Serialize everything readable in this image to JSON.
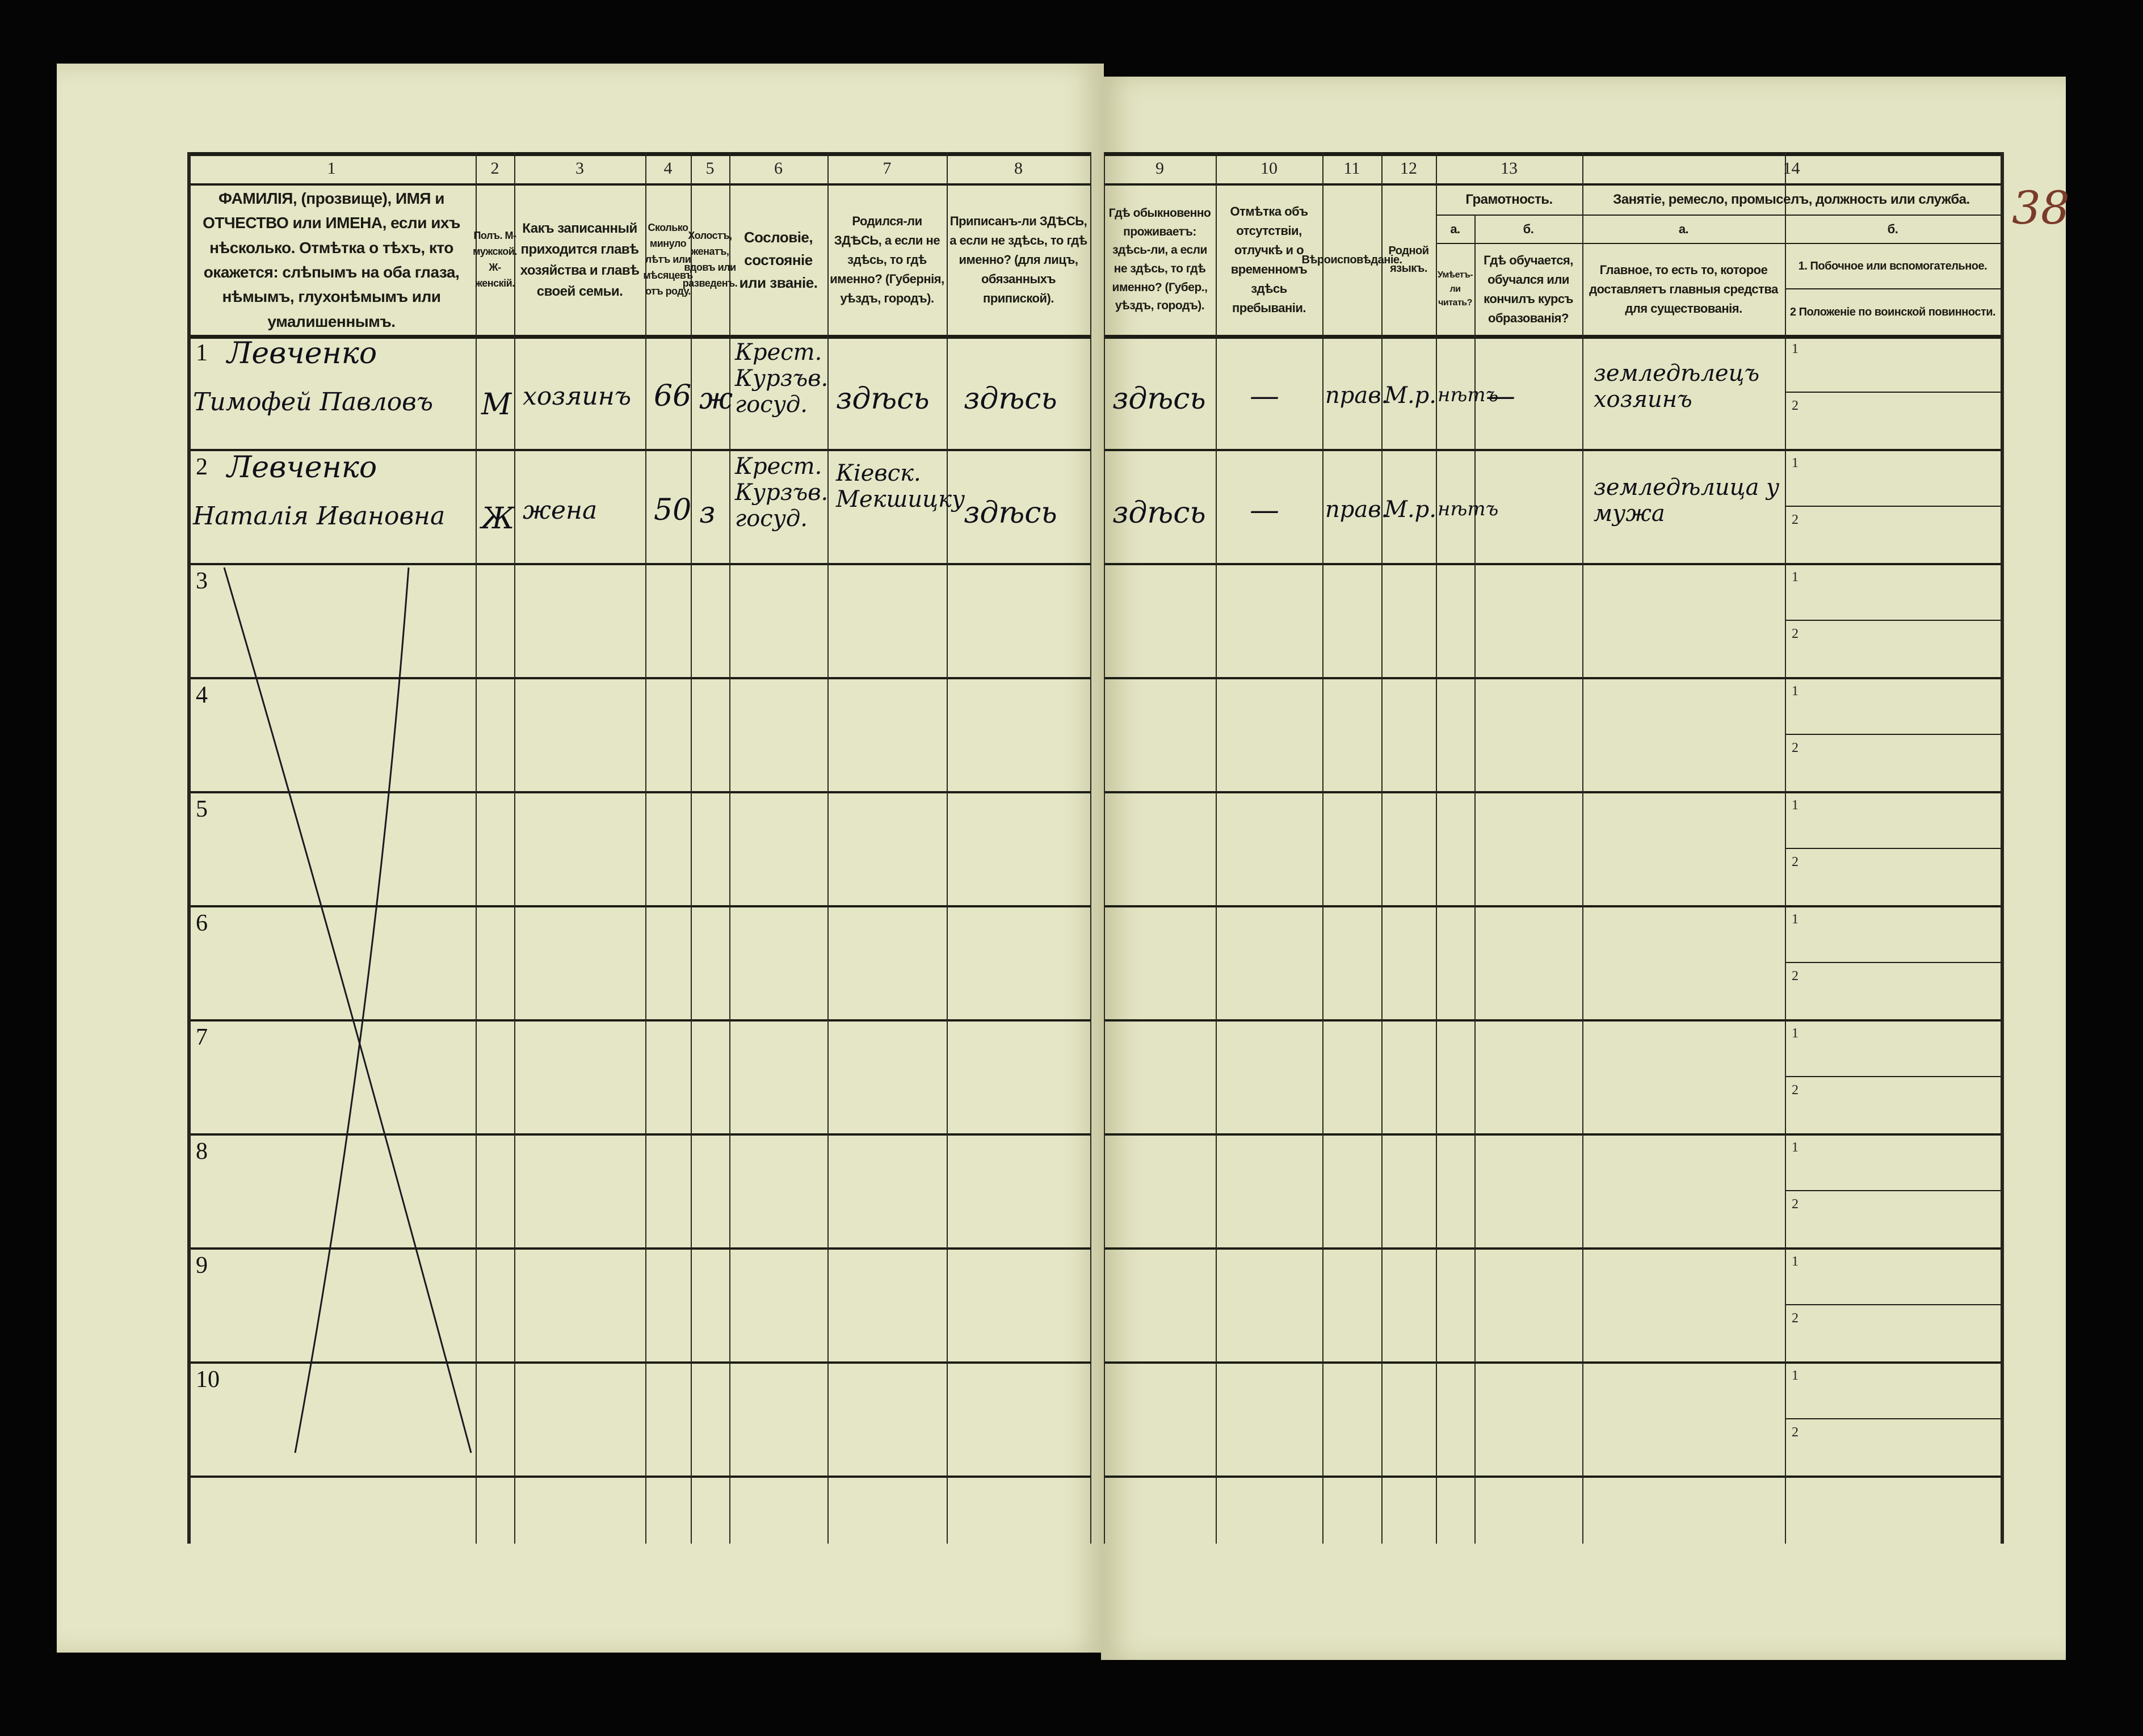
{
  "sheet_number": "38",
  "column_numbers": [
    "1",
    "2",
    "3",
    "4",
    "5",
    "6",
    "7",
    "8",
    "9",
    "10",
    "11",
    "12",
    "13",
    "14"
  ],
  "headers": {
    "c1": "ФАМИЛІЯ, (прозвище), ИМЯ и ОТЧЕСТВО или ИМЕНА, если ихъ нѣсколько. Отмѣтка о тѣхъ, кто окажется: слѣпымъ на оба глаза, нѣмымъ, глухонѣмымъ или умалишеннымъ.",
    "c2": "Полъ. М-мужской. Ж-женскій.",
    "c3": "Какъ записанный приходится главѣ хозяйства и главѣ своей семьи.",
    "c4": "Сколько минуло лѣтъ или мѣсяцевъ отъ роду.",
    "c5": "Холостъ, женатъ, вдовъ или разведенъ.",
    "c6": "Сословіе, состояніе или званіе.",
    "c7": "Родился-ли ЗДѢСЬ, а если не здѣсь, то гдѣ именно? (Губернія, уѣздъ, городъ).",
    "c8": "Приписанъ-ли ЗДѢСЬ, а если не здѣсь, то гдѣ именно? (для лицъ, обязанныхъ припиской).",
    "c9": "Гдѣ обыкновенно проживаетъ: здѣсь-ли, а если не здѣсь, то гдѣ именно? (Губер., уѣздъ, городъ).",
    "c10": "Отмѣтка объ отсутствіи, отлучкѣ и о временномъ здѣсь пребываніи.",
    "c11": "Вѣроисповѣданіе.",
    "c12": "Родной языкъ.",
    "c13": "Грамотность.",
    "c13a_letter": "а.",
    "c13a": "Умѣетъ-ли читать?",
    "c13b_letter": "б.",
    "c13b": "Гдѣ обучается, обучался или кончилъ курсъ образованія?",
    "c14": "Занятіе, ремесло, промыселъ, должность или служба.",
    "c14a_letter": "а.",
    "c14a": "Главное, то есть то, которое доставляетъ главныя средства для существованія.",
    "c14b_letter": "б.",
    "c14b1": "1. Побочное или вспомогательное.",
    "c14b2": "2 Положеніе по воинской повинности."
  },
  "row_numbers": [
    "1",
    "2",
    "3",
    "4",
    "5",
    "6",
    "7",
    "8",
    "9",
    "10"
  ],
  "sub_labels": [
    "1",
    "2"
  ],
  "entries": [
    {
      "surname": "Левченко",
      "name": "Тимофей Павловъ",
      "sex": "М",
      "relation": "хозяинъ",
      "age": "66",
      "marital": "ж",
      "estate": "Крест. Курзъв. госуд.",
      "born": "здѣсь",
      "registered": "здѣсь",
      "resides": "здѣсь",
      "absence": "—",
      "religion": "прав.",
      "language": "М.р.",
      "literate": "нѣтъ",
      "education": "—",
      "occupation_main": "земледѣлецъ хозяинъ"
    },
    {
      "surname": "Левченко",
      "name": "Наталія Ивановна",
      "sex": "Ж",
      "relation": "жена",
      "age": "50",
      "marital": "з",
      "estate": "Крест. Курзъв. госуд.",
      "born": "Кіевск. Мекшицку",
      "registered": "здѣсь",
      "resides": "здѣсь",
      "absence": "—",
      "religion": "прав.",
      "language": "М.р.",
      "literate": "нѣтъ",
      "education": "",
      "occupation_main": "земледѣлица у мужа"
    }
  ],
  "colors": {
    "paper": "#e5e6c6",
    "ink": "#101018",
    "background": "#050505"
  }
}
